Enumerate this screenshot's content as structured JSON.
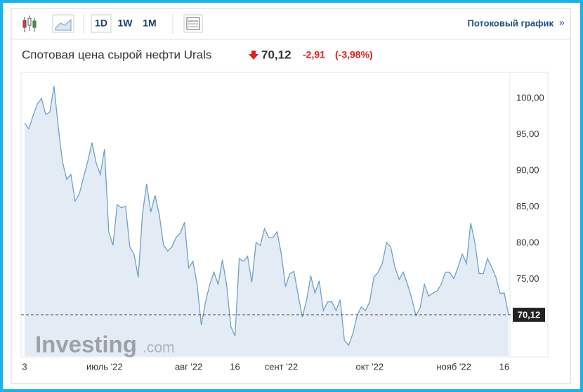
{
  "toolbar": {
    "intervals": [
      "1D",
      "1W",
      "1M"
    ],
    "link": "Потоковый график",
    "link_arrow": "»"
  },
  "watermark": [
    "Investing",
    ".com"
  ],
  "chart_data": {
    "type": "area",
    "title": "Спотовая цена сырой нефти Urals",
    "price": "70,12",
    "change": "-2,91",
    "change_pct": "(-3,98%)",
    "color": "#6f9fc8",
    "fill_color": "#e3ecf5",
    "categories": [
      "3",
      null,
      null,
      null,
      null,
      null,
      null,
      null,
      null,
      null,
      null,
      null,
      null,
      null,
      null,
      null,
      null,
      null,
      null,
      "июль '22",
      null,
      null,
      null,
      null,
      null,
      null,
      null,
      null,
      null,
      null,
      null,
      null,
      null,
      null,
      null,
      null,
      null,
      null,
      null,
      "авг '22",
      null,
      null,
      null,
      null,
      null,
      null,
      null,
      null,
      null,
      null,
      "16",
      null,
      null,
      null,
      null,
      null,
      null,
      null,
      null,
      null,
      null,
      "сент '22",
      null,
      null,
      null,
      null,
      null,
      null,
      null,
      null,
      null,
      null,
      null,
      null,
      null,
      null,
      null,
      null,
      null,
      null,
      null,
      null,
      "окт '22",
      null,
      null,
      null,
      null,
      null,
      null,
      null,
      null,
      null,
      null,
      null,
      null,
      null,
      null,
      null,
      null,
      null,
      null,
      null,
      "нояб '22",
      null,
      null,
      null,
      null,
      null,
      null,
      null,
      null,
      null,
      null,
      null,
      "16",
      null
    ],
    "values": [
      96.6,
      95.8,
      97.6,
      99.2,
      100.0,
      97.8,
      98.1,
      101.7,
      96.1,
      91.3,
      88.8,
      89.5,
      85.8,
      86.8,
      89.1,
      91.3,
      93.9,
      91.1,
      89.5,
      93.0,
      81.6,
      79.7,
      85.3,
      84.9,
      85.1,
      79.5,
      78.5,
      75.3,
      84.0,
      88.2,
      84.3,
      86.6,
      84.0,
      79.8,
      78.9,
      79.5,
      80.8,
      81.4,
      82.9,
      76.6,
      77.5,
      74.3,
      68.7,
      71.9,
      74.3,
      76.0,
      74.3,
      77.7,
      74.3,
      68.5,
      67.2,
      77.9,
      77.5,
      78.2,
      74.6,
      80.1,
      79.7,
      82.0,
      80.8,
      80.8,
      81.6,
      78.5,
      74.0,
      75.8,
      76.1,
      72.9,
      69.8,
      72.1,
      75.5,
      73.1,
      74.8,
      70.7,
      71.9,
      71.9,
      70.7,
      72.2,
      66.6,
      65.9,
      67.5,
      70.0,
      71.2,
      70.7,
      71.9,
      75.3,
      76.0,
      77.2,
      80.1,
      79.5,
      76.7,
      75.0,
      76.0,
      74.3,
      72.4,
      70.0,
      71.1,
      74.3,
      72.7,
      73.1,
      73.4,
      74.3,
      76.0,
      76.0,
      75.1,
      76.7,
      78.5,
      77.2,
      82.8,
      80.1,
      75.8,
      75.8,
      77.9,
      76.7,
      75.3,
      73.1,
      73.1,
      70.12
    ],
    "last_price": {
      "value": 70.12,
      "label": "70,12"
    },
    "ylim": [
      64.4,
      103.6
    ],
    "yticks": [
      {
        "value": 75,
        "label": "75,00"
      },
      {
        "value": 80,
        "label": "80,00"
      },
      {
        "value": 85,
        "label": "85,00"
      },
      {
        "value": 90,
        "label": "90,00"
      },
      {
        "value": 95,
        "label": "95,00"
      },
      {
        "value": 100,
        "label": "100,00"
      }
    ],
    "grid": false
  }
}
